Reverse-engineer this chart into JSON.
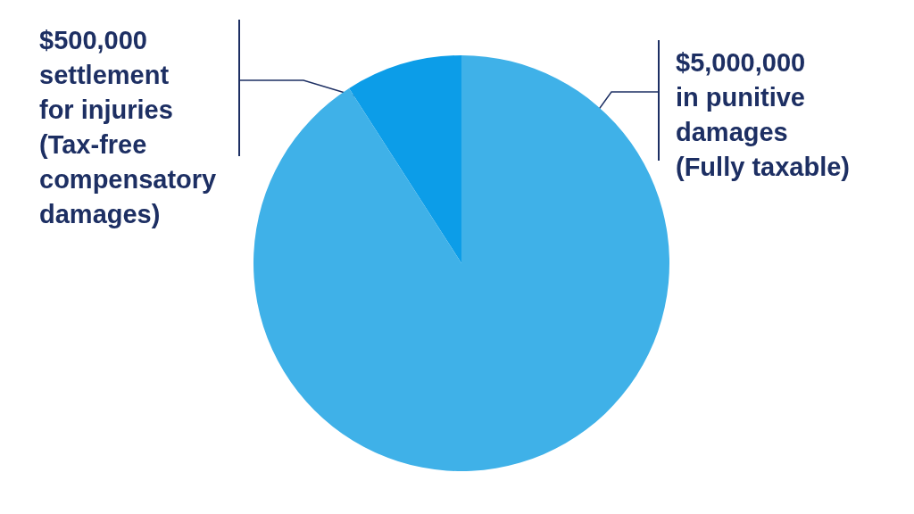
{
  "chart_data": {
    "type": "pie",
    "categories": [
      "settlement\nfor injuries\n(Tax-free\ncompensatory\ndamages)",
      "in punitive\ndamages\n(Fully taxable)"
    ],
    "values": [
      500000,
      5000000
    ],
    "value_labels": [
      "$500,000",
      "$5,000,000"
    ],
    "colors": [
      "#0c9de8",
      "#3fb1e8"
    ],
    "legend": false
  }
}
